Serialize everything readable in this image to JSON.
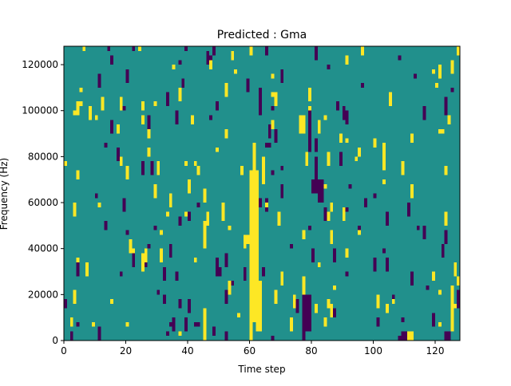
{
  "chart_data": {
    "type": "heatmap",
    "title": "Predicted : Gma",
    "xlabel": "Time step",
    "ylabel": "Frequency (Hz)",
    "xlim": [
      0,
      128
    ],
    "ylim": [
      0,
      128000
    ],
    "x_ticks": [
      0,
      20,
      40,
      60,
      80,
      100,
      120
    ],
    "y_ticks": [
      0,
      20000,
      40000,
      60000,
      80000,
      100000,
      120000
    ],
    "colormap": "viridis",
    "levels": {
      "low": "#440154",
      "mid": "#21908c",
      "high": "#fde725"
    },
    "background_level": "mid",
    "vertical_bands": [
      {
        "level": "high",
        "x0": 60,
        "x1": 63,
        "y0": 8000,
        "y1": 74000
      },
      {
        "level": "high",
        "x0": 60,
        "x1": 61,
        "y0": 0,
        "y1": 8000
      },
      {
        "level": "high",
        "x0": 62,
        "x1": 64,
        "y0": 4000,
        "y1": 26000
      },
      {
        "level": "high",
        "x0": 61,
        "x1": 62,
        "y0": 74000,
        "y1": 86000
      },
      {
        "level": "low",
        "x0": 77,
        "x1": 80,
        "y0": 4000,
        "y1": 20000
      },
      {
        "level": "low",
        "x0": 77,
        "x1": 78,
        "y0": 0,
        "y1": 6000
      },
      {
        "level": "high",
        "x0": 77,
        "x1": 78,
        "y0": 20000,
        "y1": 28000
      },
      {
        "level": "low",
        "x0": 79,
        "x1": 80,
        "y0": 82000,
        "y1": 100000
      },
      {
        "level": "high",
        "x0": 76,
        "x1": 78,
        "y0": 90000,
        "y1": 98000
      },
      {
        "level": "low",
        "x0": 80,
        "x1": 82,
        "y0": 64000,
        "y1": 70000
      },
      {
        "level": "high",
        "x0": 45,
        "x1": 46,
        "y0": 0,
        "y1": 14000
      },
      {
        "level": "low",
        "x0": 82,
        "x1": 84,
        "y0": 60000,
        "y1": 70000
      },
      {
        "level": "low",
        "x0": 81,
        "x1": 82,
        "y0": 70000,
        "y1": 80000
      },
      {
        "level": "low",
        "x0": 63,
        "x1": 64,
        "y0": 98000,
        "y1": 110000
      },
      {
        "level": "high",
        "x0": 64,
        "x1": 65,
        "y0": 68000,
        "y1": 80000
      },
      {
        "level": "low",
        "x0": 84,
        "x1": 85,
        "y0": 52000,
        "y1": 58000
      },
      {
        "level": "low",
        "x0": 109,
        "x1": 111,
        "y0": 0,
        "y1": 4000
      },
      {
        "level": "low",
        "x0": 123,
        "x1": 125,
        "y0": 0,
        "y1": 4000
      },
      {
        "level": "high",
        "x0": 111,
        "x1": 113,
        "y0": 0,
        "y1": 4000
      },
      {
        "level": "high",
        "x0": 125,
        "x1": 126,
        "y0": 4000,
        "y1": 24000
      },
      {
        "level": "high",
        "x0": 126,
        "x1": 127,
        "y0": 28000,
        "y1": 34000
      },
      {
        "level": "low",
        "x0": 127,
        "x1": 128,
        "y0": 14000,
        "y1": 22000
      }
    ],
    "scatter_seed": 20240615,
    "scatter_density": 0.035
  }
}
